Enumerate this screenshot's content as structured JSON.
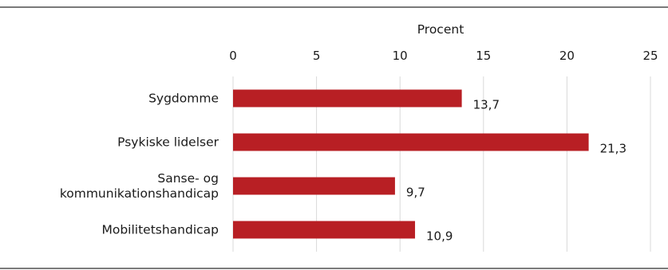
{
  "chart_data": {
    "type": "bar",
    "orientation": "horizontal",
    "xlabel": "Procent",
    "xlim": [
      0,
      25
    ],
    "x_ticks": [
      0,
      5,
      10,
      15,
      20,
      25
    ],
    "x_tick_labels": [
      "0",
      "5",
      "10",
      "15",
      "20",
      "25"
    ],
    "x_axis_position": "top",
    "categories": [
      [
        "Sygdomme"
      ],
      [
        "Psykiske lidelser"
      ],
      [
        "Sanse- og",
        "kommunikationshandicap"
      ],
      [
        "Mobilitetshandicap"
      ]
    ],
    "values": [
      13.7,
      21.3,
      9.7,
      10.9
    ],
    "value_labels": [
      "13,7",
      "21,3",
      "9,7",
      "10,9"
    ],
    "bar_color": "#b81f24",
    "grid": "vertical",
    "grid_color": "#d9d9d9",
    "rule_color": "#7a7a7a",
    "legend": "none"
  }
}
